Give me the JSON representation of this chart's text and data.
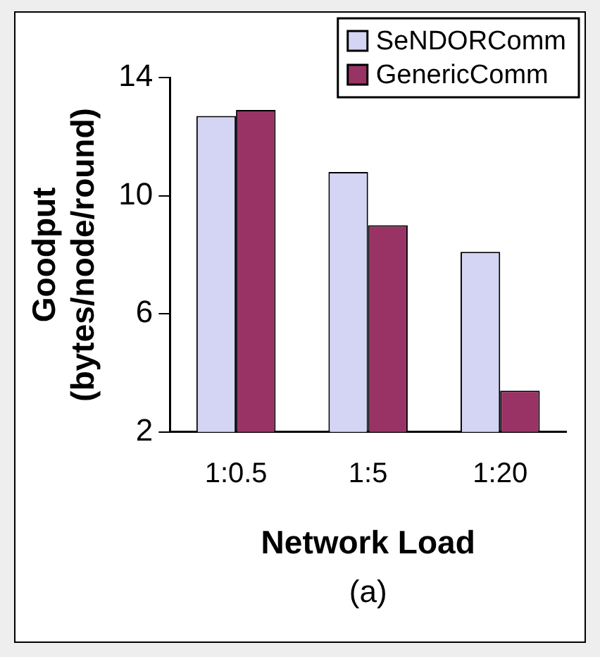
{
  "chart_data": {
    "type": "bar",
    "categories": [
      "1:0.5",
      "1:5",
      "1:20"
    ],
    "series": [
      {
        "name": "SeNDORComm",
        "color": "#d4d4f4",
        "values": [
          12.7,
          10.8,
          8.1
        ]
      },
      {
        "name": "GenericComm",
        "color": "#993366",
        "values": [
          12.9,
          9.0,
          3.4
        ]
      }
    ],
    "xlabel": "Network Load",
    "ylabel": "Goodput (bytes/node/round)",
    "annotations": [
      "(a)"
    ],
    "ylim": [
      2,
      14
    ],
    "yticks": [
      2,
      6,
      10,
      14
    ],
    "grid": false,
    "legend": "top right"
  }
}
